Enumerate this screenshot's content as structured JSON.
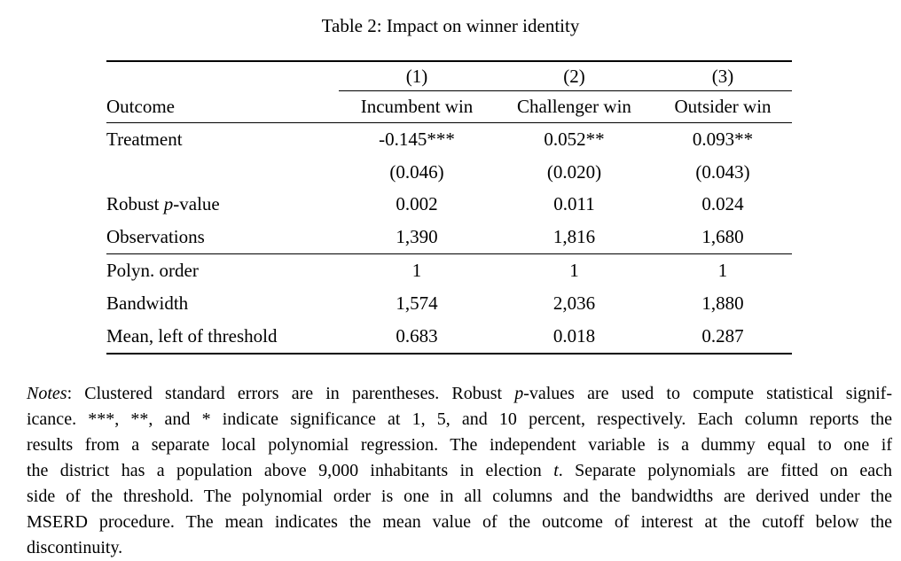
{
  "title": "Table 2: Impact on winner identity",
  "table": {
    "column_numbers": [
      "(1)",
      "(2)",
      "(3)"
    ],
    "header": {
      "outcome_label": "Outcome",
      "columns": [
        "Incumbent win",
        "Challenger win",
        "Outsider win"
      ]
    },
    "rows": [
      {
        "label": [
          {
            "t": "Treatment"
          }
        ],
        "cells": [
          "-0.145***",
          "0.052**",
          "0.093**"
        ]
      },
      {
        "label": [],
        "cells": [
          "(0.046)",
          "(0.020)",
          "(0.043)"
        ]
      },
      {
        "label": [
          {
            "t": "Robust "
          },
          {
            "t": "p",
            "i": true
          },
          {
            "t": "-value"
          }
        ],
        "cells": [
          "0.002",
          "0.011",
          "0.024"
        ]
      },
      {
        "label": [
          {
            "t": "Observations"
          }
        ],
        "cells": [
          "1,390",
          "1,816",
          "1,680"
        ]
      },
      {
        "label": [
          {
            "t": "Polyn. order"
          }
        ],
        "cells": [
          "1",
          "1",
          "1"
        ]
      },
      {
        "label": [
          {
            "t": "Bandwidth"
          }
        ],
        "cells": [
          "1,574",
          "2,036",
          "1,880"
        ]
      },
      {
        "label": [
          {
            "t": "Mean, left of threshold"
          }
        ],
        "cells": [
          "0.683",
          "0.018",
          "0.287"
        ]
      }
    ]
  },
  "notes": {
    "lines": [
      [
        {
          "t": "Notes",
          "i": true
        },
        {
          "t": ": Clustered standard errors are in parentheses. Robust "
        },
        {
          "t": "p",
          "i": true
        },
        {
          "t": "-values are used to compute statistical signif-"
        }
      ],
      [
        {
          "t": "icance. ***, **, and * indicate significance at 1, 5, and 10 percent, respectively. Each column reports the"
        }
      ],
      [
        {
          "t": "results from a separate local polynomial regression. The independent variable is a dummy equal to one if"
        }
      ],
      [
        {
          "t": "the district has a population above 9,000 inhabitants in election "
        },
        {
          "t": "t",
          "i": true
        },
        {
          "t": ". Separate polynomials are fitted on each"
        }
      ],
      [
        {
          "t": "side of the threshold. The polynomial order is one in all columns and the bandwidths are derived under the"
        }
      ],
      [
        {
          "t": "MSERD procedure. The mean indicates the mean value of the outcome of interest at the cutoff below the"
        }
      ],
      [
        {
          "t": "discontinuity."
        }
      ]
    ]
  },
  "colors": {
    "text": "#000000",
    "background": "#ffffff",
    "rule": "#000000"
  }
}
